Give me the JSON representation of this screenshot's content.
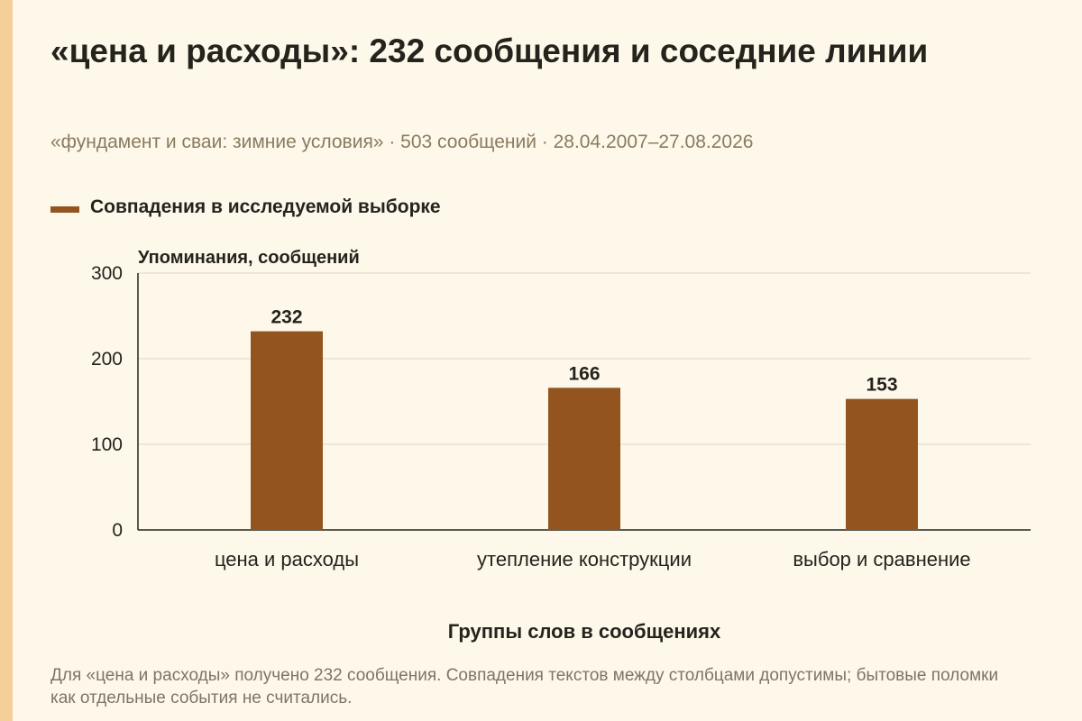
{
  "header": {
    "title": "«цена и расходы»: 232 сообщения и соседние линии",
    "subtitle": "«фундамент и сваи: зимние условия» · 503 сообщений · 28.04.2007–27.08.2026"
  },
  "colors": {
    "bar": "#93541f",
    "background": "#fdf8ea",
    "accent_stripe": "#f5cf9a"
  },
  "chart_data": {
    "type": "bar",
    "title": "«цена и расходы»: 232 сообщения и соседние линии",
    "categories": [
      "цена и расходы",
      "утепление конструкции",
      "выбор и сравнение"
    ],
    "series": [
      {
        "name": "Совпадения в исследуемой выборке",
        "values": [
          232,
          166,
          153
        ]
      }
    ],
    "xlabel": "Группы слов в сообщениях",
    "ylabel": "Упоминания, сообщений",
    "ylim": [
      0,
      300
    ],
    "yticks": [
      0,
      100,
      200,
      300
    ],
    "ytick_labels": [
      "0",
      "100",
      "200",
      "300"
    ],
    "grid": true,
    "legend_position": "top-left"
  },
  "note": "Для «цена и расходы» получено 232 сообщения. Совпадения текстов между столбцами допустимы; бытовые поломки как отдельные события не считались."
}
